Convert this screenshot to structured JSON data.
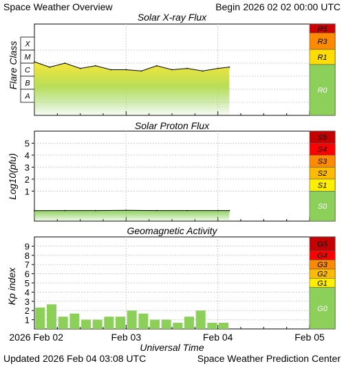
{
  "header": {
    "title": "Space Weather Overview",
    "begin_label": "Begin",
    "begin_value": "2026 02 02 00:00 UTC"
  },
  "footer": {
    "updated_label": "Updated",
    "updated_value": "2026 Feb 04 03:08 UTC",
    "credit": "Space Weather Prediction Center",
    "xaxis_title": "Universal Time"
  },
  "chart_data": [
    {
      "type": "area",
      "title": "Solar X-ray Flux",
      "ylabel": "Flare Class",
      "y_scale": "log10 (W/m²)",
      "ylim": [
        -9,
        -2
      ],
      "flare_classes": [
        "X",
        "M",
        "C",
        "B",
        "A"
      ],
      "x": [
        "2026-02-02 00:00",
        "2026-02-02 04:00",
        "2026-02-02 08:00",
        "2026-02-02 12:00",
        "2026-02-02 16:00",
        "2026-02-02 20:00",
        "2026-02-03 00:00",
        "2026-02-03 04:00",
        "2026-02-03 08:00",
        "2026-02-03 12:00",
        "2026-02-03 16:00",
        "2026-02-03 20:00",
        "2026-02-04 00:00",
        "2026-02-04 03:00"
      ],
      "values": [
        -4.9,
        -5.3,
        -5.0,
        -5.4,
        -5.2,
        -5.5,
        -5.5,
        -5.6,
        -5.2,
        -5.5,
        -5.4,
        -5.6,
        -5.4,
        -5.3
      ],
      "scale_levels": [
        {
          "label": "R5",
          "color": "#cc0000"
        },
        {
          "label": "R3",
          "color": "#ff8a00"
        },
        {
          "label": "R1",
          "color": "#ffdd00"
        },
        {
          "label": "R0",
          "color": "#8cd05a"
        }
      ]
    },
    {
      "type": "area",
      "title": "Solar Proton Flux",
      "ylabel": "Log10(pfu)",
      "ylim": [
        -1.5,
        6
      ],
      "yticks": [
        1,
        2,
        3,
        4,
        5
      ],
      "x": [
        "2026-02-02 00:00",
        "2026-02-02 08:00",
        "2026-02-02 16:00",
        "2026-02-03 00:00",
        "2026-02-03 08:00",
        "2026-02-03 16:00",
        "2026-02-04 00:00",
        "2026-02-04 03:00"
      ],
      "values": [
        -0.63,
        -0.62,
        -0.62,
        -0.6,
        -0.62,
        -0.62,
        -0.62,
        -0.62
      ],
      "scale_levels": [
        {
          "label": "S5",
          "color": "#c40000"
        },
        {
          "label": "S4",
          "color": "#ff0000"
        },
        {
          "label": "S3",
          "color": "#ff8a00"
        },
        {
          "label": "S2",
          "color": "#ffbb00"
        },
        {
          "label": "S1",
          "color": "#ffee00"
        },
        {
          "label": "S0",
          "color": "#8cd05a"
        }
      ]
    },
    {
      "type": "bar",
      "title": "Geomagnetic Activity",
      "ylabel": "Kp index",
      "ylim": [
        0,
        10
      ],
      "yticks": [
        1,
        2,
        3,
        4,
        5,
        6,
        7,
        8,
        9
      ],
      "bar_color": "#8cd05a",
      "x": [
        "2026-02-02 00:00",
        "2026-02-02 03:00",
        "2026-02-02 06:00",
        "2026-02-02 09:00",
        "2026-02-02 12:00",
        "2026-02-02 15:00",
        "2026-02-02 18:00",
        "2026-02-02 21:00",
        "2026-02-03 00:00",
        "2026-02-03 03:00",
        "2026-02-03 06:00",
        "2026-02-03 09:00",
        "2026-02-03 12:00",
        "2026-02-03 15:00",
        "2026-02-03 18:00",
        "2026-02-03 21:00",
        "2026-02-04 00:00"
      ],
      "values": [
        2.33,
        2.67,
        1.33,
        1.67,
        1.0,
        1.0,
        1.33,
        1.33,
        2.0,
        1.67,
        1.0,
        1.0,
        0.67,
        1.33,
        2.0,
        0.67,
        0.67
      ],
      "scale_levels": [
        {
          "label": "G5",
          "color": "#c40000"
        },
        {
          "label": "G4",
          "color": "#ff0000"
        },
        {
          "label": "G3",
          "color": "#ff8a00"
        },
        {
          "label": "G2",
          "color": "#ffbb00"
        },
        {
          "label": "G1",
          "color": "#ffee00"
        },
        {
          "label": "G0",
          "color": "#8cd05a"
        }
      ]
    }
  ],
  "time_axis": {
    "start": "2026-02-02 00:00",
    "end": "2026-02-05 00:00",
    "tick_labels": [
      "2026 Feb 02",
      "Feb 03",
      "Feb 04",
      "Feb 05"
    ]
  }
}
